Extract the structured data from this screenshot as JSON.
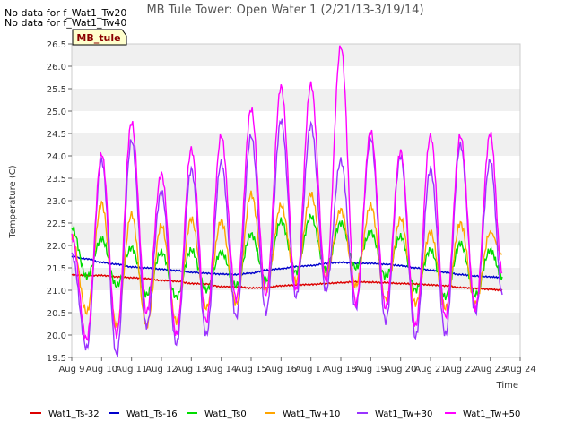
{
  "no_data_notes": [
    "No data for f_Wat1_Tw20",
    "No data for f_Wat1_Tw40"
  ],
  "badge": {
    "label": "MB_tule",
    "fill": "#ffffcc",
    "text_color": "#8b0000"
  },
  "chart_data": {
    "type": "line",
    "title": "MB Tule Tower: Open Water 1 (2/21/13-3/19/14)",
    "xlabel": "Time",
    "ylabel": "Temperature (C)",
    "x_ticks": [
      "Aug 9",
      "Aug 10",
      "Aug 11",
      "Aug 12",
      "Aug 13",
      "Aug 14",
      "Aug 15",
      "Aug 16",
      "Aug 17",
      "Aug 18",
      "Aug 19",
      "Aug 20",
      "Aug 21",
      "Aug 22",
      "Aug 23",
      "Aug 24"
    ],
    "x_range_days": [
      0,
      15
    ],
    "ylim": [
      19.5,
      26.5
    ],
    "y_ticks": [
      19.5,
      20.0,
      20.5,
      21.0,
      21.5,
      22.0,
      22.5,
      23.0,
      23.5,
      24.0,
      24.5,
      25.0,
      25.5,
      26.0,
      26.5
    ],
    "grid": "horizontal bands",
    "legend_position": "bottom",
    "series": [
      {
        "name": "Wat1_Ts-32",
        "color": "#dd0000",
        "x": [
          0,
          0.5,
          1,
          1.5,
          2,
          2.5,
          3,
          3.5,
          4,
          4.5,
          5,
          5.5,
          6,
          6.5,
          7,
          7.5,
          8,
          8.5,
          9,
          9.5,
          10,
          10.5,
          11,
          11.5,
          12,
          12.5,
          13,
          13.5,
          14,
          14.4
        ],
        "values": [
          21.34,
          21.33,
          21.33,
          21.3,
          21.28,
          21.26,
          21.22,
          21.2,
          21.15,
          21.14,
          21.08,
          21.08,
          21.05,
          21.06,
          21.1,
          21.12,
          21.13,
          21.15,
          21.17,
          21.19,
          21.18,
          21.17,
          21.15,
          21.14,
          21.12,
          21.1,
          21.06,
          21.04,
          21.02,
          21.0
        ]
      },
      {
        "name": "Wat1_Ts-16",
        "color": "#0000cc",
        "x": [
          0,
          0.5,
          1,
          1.5,
          2,
          2.5,
          3,
          3.5,
          4,
          4.5,
          5,
          5.5,
          6,
          6.5,
          7,
          7.5,
          8,
          8.5,
          9,
          9.5,
          10,
          10.5,
          11,
          11.5,
          12,
          12.5,
          13,
          13.5,
          14,
          14.4
        ],
        "values": [
          21.75,
          21.7,
          21.62,
          21.58,
          21.52,
          21.5,
          21.47,
          21.44,
          21.4,
          21.38,
          21.36,
          21.35,
          21.38,
          21.45,
          21.48,
          21.53,
          21.55,
          21.6,
          21.62,
          21.6,
          21.6,
          21.58,
          21.55,
          21.5,
          21.45,
          21.4,
          21.35,
          21.32,
          21.3,
          21.28
        ]
      },
      {
        "name": "Wat1_Ts0",
        "color": "#00dd00",
        "x": [
          0,
          0.5,
          1,
          1.5,
          2,
          2.5,
          3,
          3.5,
          4,
          4.5,
          5,
          5.5,
          6,
          6.5,
          7,
          7.5,
          8,
          8.5,
          9,
          9.5,
          10,
          10.5,
          11,
          11.5,
          12,
          12.5,
          13,
          13.5,
          14,
          14.4
        ],
        "values": [
          22.4,
          21.3,
          22.15,
          21.1,
          21.95,
          20.9,
          21.85,
          20.85,
          21.9,
          21.0,
          21.85,
          21.1,
          22.25,
          21.2,
          22.55,
          21.4,
          22.65,
          21.45,
          22.5,
          21.5,
          22.3,
          21.3,
          22.2,
          21.0,
          21.9,
          20.85,
          22.05,
          20.9,
          21.9,
          21.3
        ]
      },
      {
        "name": "Wat1_Tw+10",
        "color": "#ffa500",
        "x": [
          0,
          0.5,
          1,
          1.5,
          2,
          2.5,
          3,
          3.5,
          4,
          4.5,
          5,
          5.5,
          6,
          6.5,
          7,
          7.5,
          8,
          8.5,
          9,
          9.5,
          10,
          10.5,
          11,
          11.5,
          12,
          12.5,
          13,
          13.5,
          14,
          14.4
        ],
        "values": [
          22.2,
          20.5,
          22.95,
          20.2,
          22.7,
          20.2,
          22.45,
          20.3,
          22.6,
          20.6,
          22.55,
          20.7,
          23.15,
          21.0,
          22.9,
          21.2,
          23.15,
          21.3,
          22.8,
          21.1,
          22.9,
          20.8,
          22.6,
          20.7,
          22.3,
          20.6,
          22.5,
          20.7,
          22.3,
          21.8
        ]
      },
      {
        "name": "Wat1_Tw+30",
        "color": "#9933ff",
        "x": [
          0,
          0.5,
          1,
          1.5,
          2,
          2.5,
          3,
          3.5,
          4,
          4.5,
          5,
          5.5,
          6,
          6.5,
          7,
          7.5,
          8,
          8.5,
          9,
          9.5,
          10,
          10.5,
          11,
          11.5,
          12,
          12.5,
          13,
          13.5,
          14,
          14.4
        ],
        "values": [
          21.8,
          19.7,
          23.9,
          19.55,
          24.35,
          20.2,
          23.2,
          19.8,
          23.7,
          20.0,
          23.85,
          20.4,
          24.45,
          20.5,
          24.8,
          20.85,
          24.7,
          21.0,
          23.9,
          20.6,
          24.4,
          20.3,
          24.0,
          19.95,
          23.7,
          20.0,
          24.25,
          20.5,
          23.9,
          20.9
        ]
      },
      {
        "name": "Wat1_Tw+50",
        "color": "#ff00ff",
        "x": [
          0,
          0.5,
          1,
          1.5,
          2,
          2.5,
          3,
          3.5,
          4,
          4.5,
          5,
          5.5,
          6,
          6.5,
          7,
          7.5,
          8,
          8.5,
          9,
          9.5,
          10,
          10.5,
          11,
          11.5,
          12,
          12.5,
          13,
          13.5,
          14,
          14.4
        ],
        "values": [
          22.2,
          19.9,
          24.05,
          20.0,
          24.75,
          20.5,
          23.6,
          20.0,
          24.15,
          20.3,
          24.45,
          20.8,
          25.05,
          20.9,
          25.55,
          21.0,
          25.6,
          21.2,
          26.45,
          20.7,
          24.55,
          20.6,
          24.1,
          20.2,
          24.45,
          20.4,
          24.45,
          20.6,
          24.5,
          21.4
        ]
      }
    ]
  }
}
